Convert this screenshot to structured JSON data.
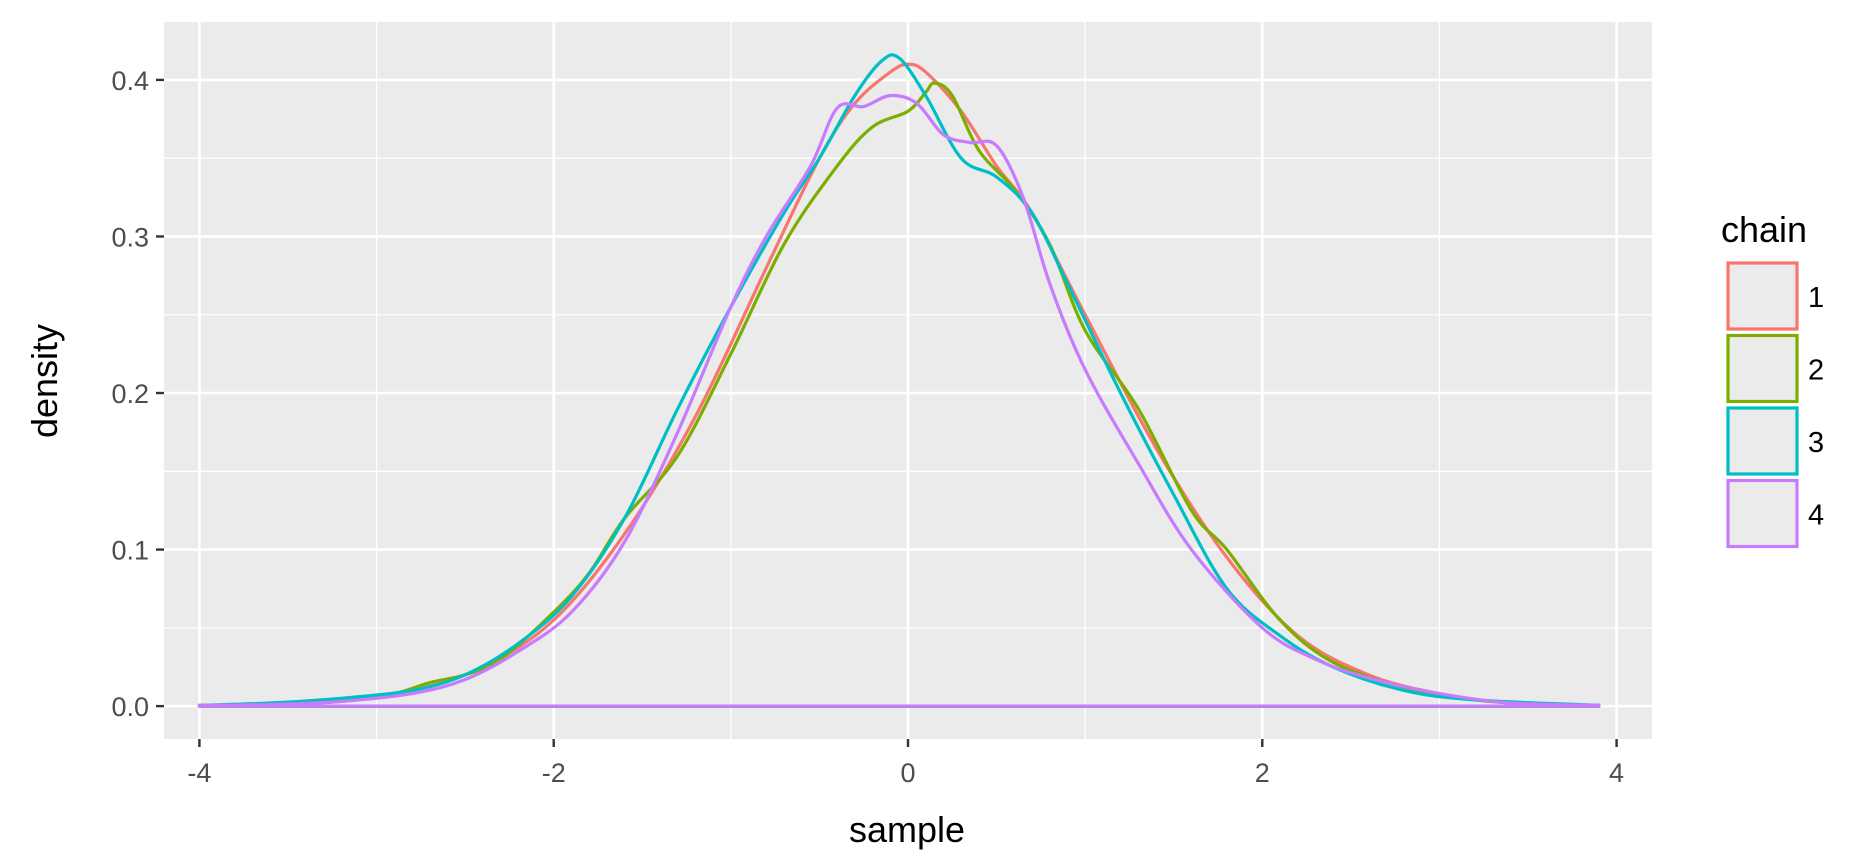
{
  "chart_data": {
    "type": "line",
    "title": "",
    "xlabel": "sample",
    "ylabel": "density",
    "xlim": [
      -4.2,
      4.2
    ],
    "ylim": [
      -0.021,
      0.437
    ],
    "x_ticks": [
      -4,
      -2,
      0,
      2,
      4
    ],
    "x_tick_labels": [
      "-4",
      "-2",
      "0",
      "2",
      "4"
    ],
    "y_ticks": [
      0.0,
      0.1,
      0.2,
      0.3,
      0.4
    ],
    "y_tick_labels": [
      "0.0",
      "0.1",
      "0.2",
      "0.3",
      "0.4"
    ],
    "grid": true,
    "legend": {
      "title": "chain",
      "position": "right"
    },
    "series": [
      {
        "name": "1",
        "color": "#F8766D",
        "x": [
          -4.0,
          -3.6,
          -3.2,
          -2.8,
          -2.4,
          -2.0,
          -1.6,
          -1.2,
          -0.8,
          -0.5,
          -0.3,
          -0.1,
          0.0,
          0.1,
          0.3,
          0.5,
          0.7,
          1.0,
          1.4,
          1.8,
          2.2,
          2.6,
          3.0,
          3.4,
          3.9
        ],
        "y": [
          0.0005,
          0.001,
          0.004,
          0.01,
          0.025,
          0.055,
          0.11,
          0.185,
          0.28,
          0.35,
          0.385,
          0.405,
          0.41,
          0.405,
          0.38,
          0.345,
          0.315,
          0.25,
          0.165,
          0.095,
          0.045,
          0.02,
          0.008,
          0.002,
          0.0005
        ]
      },
      {
        "name": "2",
        "color": "#7CAE00",
        "x": [
          -4.0,
          -3.6,
          -3.2,
          -2.9,
          -2.7,
          -2.5,
          -2.3,
          -2.0,
          -1.8,
          -1.6,
          -1.3,
          -1.0,
          -0.7,
          -0.4,
          -0.2,
          0.0,
          0.1,
          0.15,
          0.25,
          0.4,
          0.6,
          0.8,
          1.0,
          1.3,
          1.6,
          1.8,
          2.1,
          2.4,
          2.8,
          3.2,
          3.6,
          3.9
        ],
        "y": [
          0.0005,
          0.001,
          0.003,
          0.008,
          0.015,
          0.02,
          0.03,
          0.06,
          0.085,
          0.12,
          0.16,
          0.225,
          0.295,
          0.345,
          0.37,
          0.38,
          0.392,
          0.398,
          0.39,
          0.355,
          0.33,
          0.295,
          0.24,
          0.19,
          0.125,
          0.1,
          0.055,
          0.028,
          0.012,
          0.004,
          0.001,
          0.0005
        ]
      },
      {
        "name": "3",
        "color": "#00BFC4",
        "x": [
          -4.0,
          -3.6,
          -3.2,
          -2.8,
          -2.5,
          -2.2,
          -1.9,
          -1.6,
          -1.3,
          -1.0,
          -0.7,
          -0.5,
          -0.3,
          -0.15,
          -0.05,
          0.1,
          0.3,
          0.5,
          0.7,
          0.9,
          1.2,
          1.5,
          1.8,
          2.1,
          2.4,
          2.8,
          3.2,
          3.9
        ],
        "y": [
          0.0005,
          0.002,
          0.005,
          0.01,
          0.02,
          0.04,
          0.07,
          0.12,
          0.19,
          0.255,
          0.315,
          0.35,
          0.39,
          0.412,
          0.414,
          0.39,
          0.35,
          0.338,
          0.315,
          0.27,
          0.2,
          0.135,
          0.075,
          0.045,
          0.025,
          0.01,
          0.004,
          0.0005
        ]
      },
      {
        "name": "4",
        "color": "#C77CFF",
        "x": [
          -4.0,
          -3.6,
          -3.2,
          -2.8,
          -2.5,
          -2.2,
          -1.9,
          -1.6,
          -1.3,
          -1.0,
          -0.8,
          -0.55,
          -0.4,
          -0.25,
          -0.1,
          0.05,
          0.2,
          0.35,
          0.5,
          0.65,
          0.8,
          1.0,
          1.3,
          1.6,
          2.0,
          2.3,
          2.6,
          3.0,
          3.4,
          3.9
        ],
        "y": [
          0.0005,
          0.001,
          0.003,
          0.008,
          0.017,
          0.035,
          0.06,
          0.105,
          0.175,
          0.255,
          0.3,
          0.345,
          0.382,
          0.383,
          0.39,
          0.385,
          0.365,
          0.36,
          0.358,
          0.325,
          0.27,
          0.215,
          0.155,
          0.1,
          0.05,
          0.03,
          0.018,
          0.008,
          0.002,
          0.0005
        ]
      }
    ]
  }
}
